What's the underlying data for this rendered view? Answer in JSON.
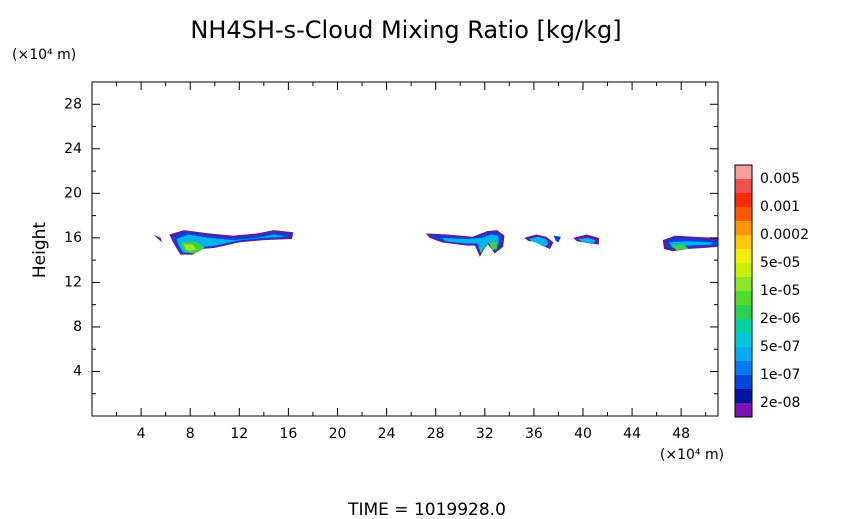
{
  "chart_data": {
    "type": "contour",
    "title": "NH4SH-s-Cloud Mixing Ratio [kg/kg]",
    "ylabel": "Height",
    "yunit": "(×10⁴ m)",
    "xunit": "(×10⁴ m)",
    "footer": "TIME = 1019928.0",
    "xlim": [
      0,
      51
    ],
    "ylim": [
      0,
      30
    ],
    "xticks": [
      4,
      8,
      12,
      16,
      20,
      24,
      28,
      32,
      36,
      40,
      44,
      48
    ],
    "yticks": [
      4,
      8,
      12,
      16,
      20,
      24,
      28
    ],
    "xminorticks": [
      2,
      6,
      10,
      14,
      18,
      22,
      26,
      30,
      34,
      38,
      42,
      46,
      50
    ],
    "yminorticks": [
      2,
      6,
      10,
      14,
      18,
      22,
      26
    ],
    "colorbar": {
      "colors": [
        "#f4a09a",
        "#f05050",
        "#ff2a00",
        "#ff5a00",
        "#ff9600",
        "#ffc800",
        "#f0f000",
        "#c8f000",
        "#8ce628",
        "#50dc28",
        "#28d250",
        "#00d2a0",
        "#00c8dc",
        "#00aaf0",
        "#0078f0",
        "#0046dc",
        "#0014a0",
        "#7814b4"
      ],
      "levels": [
        {
          "value": 0.005,
          "label": "0.005"
        },
        {
          "value": 0.001,
          "label": "0.001"
        },
        {
          "value": 0.0002,
          "label": "0.0002"
        },
        {
          "value": 5e-05,
          "label": "5e-05"
        },
        {
          "value": 1e-05,
          "label": "1e-05"
        },
        {
          "value": 2e-06,
          "label": "2e-06"
        },
        {
          "value": 5e-07,
          "label": "5e-07"
        },
        {
          "value": 1e-07,
          "label": "1e-07"
        },
        {
          "value": 2e-08,
          "label": "2e-08"
        }
      ]
    },
    "regions": [
      {
        "color": "#5a1ea0",
        "x": [
          5.0,
          5.6,
          5.7,
          5.3
        ],
        "y": [
          16.3,
          16.0,
          15.6,
          16.0
        ]
      },
      {
        "color": "#5a1ea0",
        "x": [
          6.3,
          7.5,
          9.5,
          11.5,
          13.5,
          14.8,
          16.4,
          16.3,
          14,
          12,
          10,
          9,
          8.2,
          7.2,
          6.6
        ],
        "y": [
          16.3,
          16.7,
          16.4,
          16.2,
          16.4,
          16.7,
          16.5,
          15.9,
          15.8,
          15.6,
          15.1,
          15.0,
          14.5,
          14.5,
          15.6
        ]
      },
      {
        "color": "#0046dc",
        "x": [
          6.6,
          7.6,
          9.5,
          11.5,
          13.5,
          14.8,
          16.1,
          16.0,
          14,
          12,
          10,
          9,
          8.2,
          7.3,
          6.8
        ],
        "y": [
          16.1,
          16.5,
          16.2,
          16.0,
          16.2,
          16.5,
          16.3,
          16.0,
          15.9,
          15.7,
          15.2,
          15.1,
          14.6,
          14.6,
          15.6
        ]
      },
      {
        "color": "#00b4f0",
        "x": [
          6.9,
          7.8,
          9.5,
          11.5,
          13.5,
          14.8,
          15.7,
          14,
          12,
          10,
          9,
          8.2,
          7.4,
          7.0
        ],
        "y": [
          15.9,
          16.3,
          16.0,
          15.8,
          16.0,
          16.3,
          16.1,
          16.0,
          15.8,
          15.3,
          15.2,
          14.7,
          14.7,
          15.5
        ]
      },
      {
        "color": "#40d040",
        "x": [
          7.2,
          8.4,
          9.2,
          8.4,
          7.6
        ],
        "y": [
          15.6,
          15.7,
          15.1,
          14.6,
          14.7
        ]
      },
      {
        "color": "#a0e628",
        "x": [
          7.5,
          8.2,
          8.5,
          8.0,
          7.6
        ],
        "y": [
          15.4,
          15.4,
          15.0,
          14.8,
          15.0
        ]
      },
      {
        "color": "#5a1ea0",
        "x": [
          27.2,
          29,
          31,
          32.2,
          33.0,
          33.6,
          33.5,
          32.8,
          32.2,
          31.6,
          31.2,
          30.5,
          28.5,
          27.5
        ],
        "y": [
          16.4,
          16.3,
          16.1,
          16.6,
          16.7,
          16.2,
          15.2,
          14.6,
          15.5,
          14.3,
          15.3,
          15.3,
          15.6,
          16.0
        ]
      },
      {
        "color": "#0046dc",
        "x": [
          27.6,
          29,
          31,
          32.2,
          33.0,
          33.4,
          33.3,
          32.8,
          32.3,
          31.6,
          31.3,
          30.5,
          28.6,
          27.8
        ],
        "y": [
          16.2,
          16.1,
          16.0,
          16.4,
          16.5,
          16.1,
          15.3,
          14.8,
          15.5,
          14.5,
          15.4,
          15.4,
          15.7,
          16.0
        ]
      },
      {
        "color": "#00b4f0",
        "x": [
          28.5,
          30.5,
          31.8,
          32.5,
          33.1,
          33.1,
          32.6,
          32.3,
          31.7,
          31.4,
          30.3,
          28.8
        ],
        "y": [
          16.0,
          15.9,
          16.0,
          16.3,
          16.2,
          15.4,
          15.0,
          15.6,
          14.7,
          15.5,
          15.5,
          15.7
        ]
      },
      {
        "color": "#40d040",
        "x": [
          32.3,
          33.0,
          33.0,
          32.6
        ],
        "y": [
          15.7,
          15.6,
          15.0,
          14.9
        ]
      },
      {
        "color": "#40d040",
        "x": [
          31.5,
          31.8,
          31.7
        ],
        "y": [
          15.2,
          15.2,
          14.6
        ]
      },
      {
        "color": "#5a1ea0",
        "x": [
          35.2,
          36.2,
          37.0,
          37.6,
          37.3,
          36.7,
          36.3,
          35.6
        ],
        "y": [
          16.0,
          16.3,
          16.1,
          15.6,
          15.0,
          15.3,
          15.7,
          15.7
        ]
      },
      {
        "color": "#00b4f0",
        "x": [
          35.6,
          36.3,
          37.0,
          37.2,
          36.8,
          36.3,
          35.8
        ],
        "y": [
          15.9,
          16.1,
          15.9,
          15.4,
          15.2,
          15.5,
          15.7
        ]
      },
      {
        "color": "#0046dc",
        "x": [
          37.6,
          38.2,
          38.0,
          37.8
        ],
        "y": [
          16.2,
          16.1,
          15.6,
          15.7
        ]
      },
      {
        "color": "#5a1ea0",
        "x": [
          39.2,
          40.3,
          41.3,
          41.3,
          40.5,
          39.5
        ],
        "y": [
          16.0,
          16.3,
          16.0,
          15.4,
          15.5,
          15.7
        ]
      },
      {
        "color": "#00b4f0",
        "x": [
          39.6,
          40.4,
          41.0,
          40.9,
          40.0
        ],
        "y": [
          15.9,
          16.0,
          15.8,
          15.5,
          15.6
        ]
      },
      {
        "color": "#5a1ea0",
        "x": [
          46.5,
          47.5,
          49,
          51,
          51,
          50,
          48.5,
          47.3,
          46.6
        ],
        "y": [
          15.8,
          16.2,
          16.1,
          16.0,
          15.2,
          15.1,
          15.0,
          14.8,
          15.0
        ]
      },
      {
        "color": "#0046dc",
        "x": [
          46.8,
          47.6,
          49,
          51,
          51,
          49,
          47.4,
          46.9
        ],
        "y": [
          15.7,
          16.0,
          15.9,
          15.8,
          15.3,
          15.2,
          15.0,
          15.1
        ]
      },
      {
        "color": "#00b4f0",
        "x": [
          47.0,
          48.5,
          50.5,
          50.5,
          48.5,
          47.3
        ],
        "y": [
          15.6,
          15.7,
          15.6,
          15.4,
          15.3,
          15.1
        ]
      },
      {
        "color": "#40d040",
        "x": [
          47.2,
          48.2,
          48.6,
          47.6
        ],
        "y": [
          15.3,
          15.4,
          15.0,
          14.9
        ]
      }
    ]
  }
}
